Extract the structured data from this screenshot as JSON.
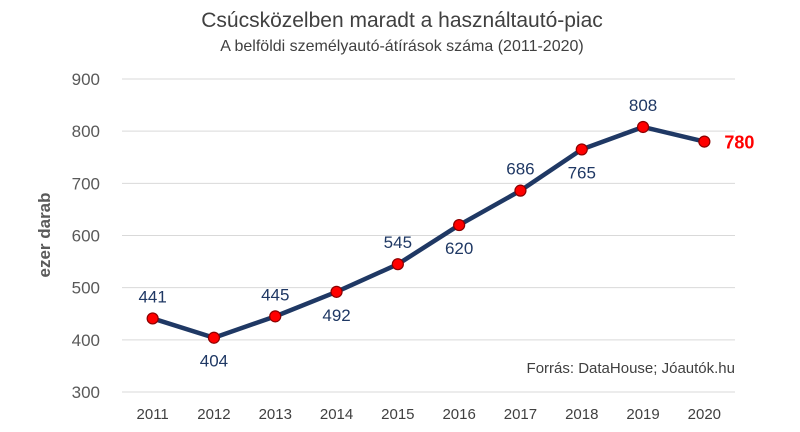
{
  "chart_data": {
    "type": "line",
    "title": "Csúcsközelben maradt a használtautó-piac",
    "subtitle": "A belföldi személyautó-átírások száma (2011-2020)",
    "ylabel": "ezer darab",
    "xlabel": "",
    "ylim": [
      300,
      900
    ],
    "yticks": [
      "300",
      "400",
      "500",
      "600",
      "700",
      "800",
      "900"
    ],
    "grid": true,
    "categories": [
      "2011",
      "2012",
      "2013",
      "2014",
      "2015",
      "2016",
      "2017",
      "2018",
      "2019",
      "2020"
    ],
    "series": [
      {
        "values": [
          441,
          404,
          445,
          492,
          545,
          620,
          686,
          765,
          808,
          780
        ],
        "labels": [
          "441",
          "404",
          "445",
          "492",
          "545",
          "620",
          "686",
          "765",
          "808",
          "780"
        ],
        "label_positions": [
          "above",
          "below",
          "above",
          "below",
          "above",
          "below",
          "above",
          "below",
          "above",
          "right"
        ],
        "line_color": "#1f3864",
        "marker_color": "#ff0000",
        "highlight_index": 9,
        "highlight_color": "#ff0000"
      }
    ],
    "source": "Forrás: DataHouse; Jóautók.hu"
  }
}
